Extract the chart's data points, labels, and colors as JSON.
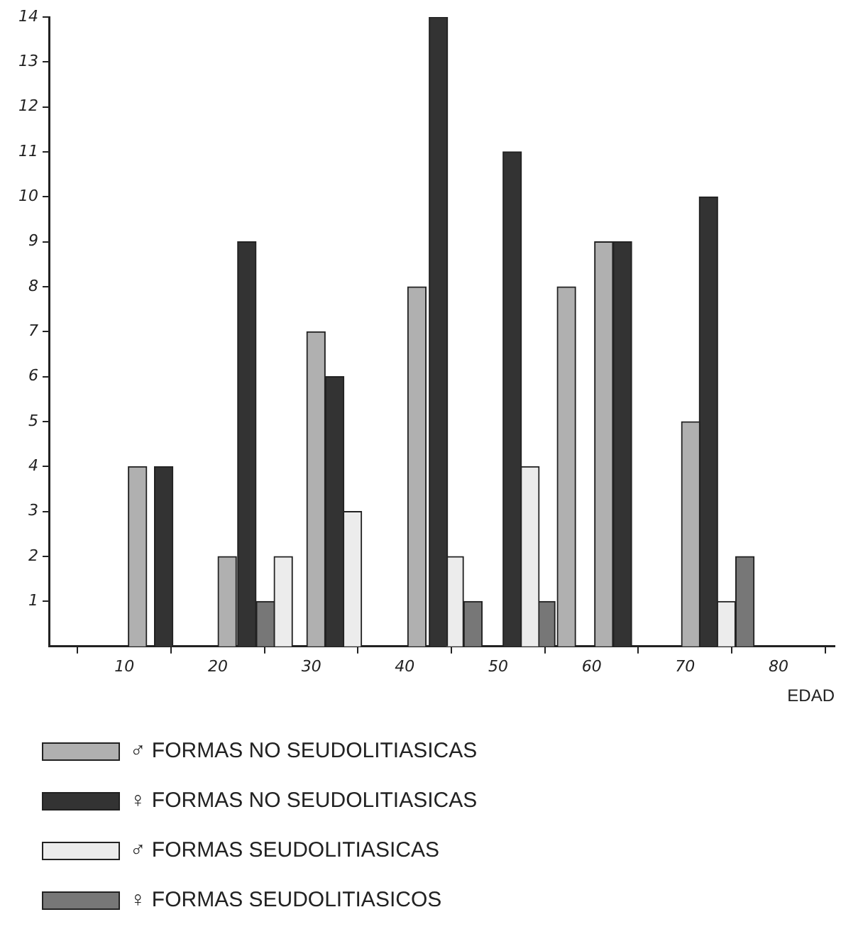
{
  "chart_data": {
    "type": "bar",
    "xlabel": "EDAD",
    "xlim": [
      2,
      86
    ],
    "xticks": [
      10,
      20,
      30,
      40,
      50,
      60,
      70,
      80
    ],
    "ylim": [
      0,
      14
    ],
    "yticks": [
      1,
      2,
      3,
      4,
      5,
      6,
      7,
      8,
      9,
      10,
      11,
      12,
      13,
      14
    ],
    "grid": false,
    "legend": "bottom",
    "series": [
      {
        "name": "♂ FORMAS NO SEUDOLITIASICAS",
        "color": "#b0b0b0",
        "x": [
          11.4,
          21,
          30.5,
          41.3,
          57.3,
          61.3,
          70.6
        ],
        "values": [
          4,
          2,
          7,
          8,
          8,
          9,
          5
        ]
      },
      {
        "name": "♀ FORMAS NO SEUDOLITIASICAS",
        "color": "#333333",
        "x": [
          14.2,
          23.1,
          32.5,
          43.6,
          51.5,
          63.3,
          72.5
        ],
        "values": [
          4,
          9,
          6,
          14,
          11,
          9,
          10
        ]
      },
      {
        "name": "♂ FORMAS SEUDOLITIASICAS",
        "color": "#ececec",
        "x": [
          27,
          34.4,
          45.3,
          53.4,
          74.4
        ],
        "values": [
          2,
          3,
          2,
          4,
          1
        ]
      },
      {
        "name": "♀ FORMAS SEUDOLITIASICOS",
        "color": "#777777",
        "x": [
          25.1,
          47.3,
          55.1,
          76.4
        ],
        "values": [
          1,
          1,
          1,
          2
        ]
      }
    ]
  }
}
